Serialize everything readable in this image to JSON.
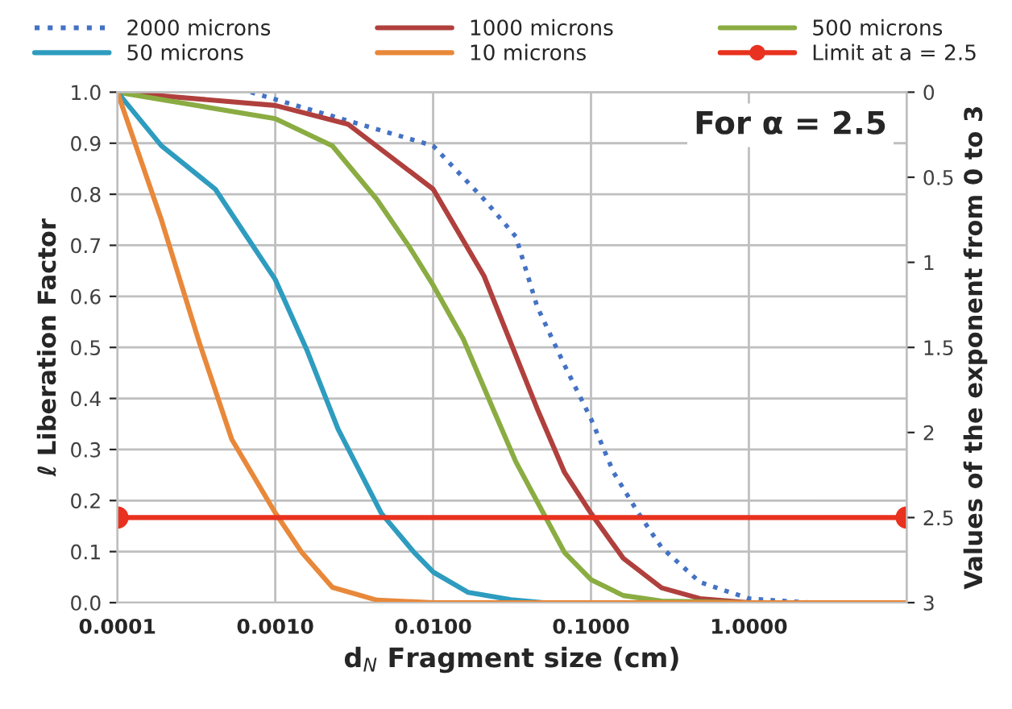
{
  "chart_data": {
    "type": "line",
    "xlabel": "d$_{N}$ Fragment size (cm)",
    "ylabel": "ℓ Liberation Factor",
    "y2label": "Values of the exponent from 0 to 3",
    "annotations": [
      "For α = 2.5"
    ],
    "log": "x",
    "grid": true,
    "legend": "top",
    "xlim": [
      0.0001,
      10
    ],
    "xticks": [
      {
        "value": 0.0001,
        "label": "0.0001"
      },
      {
        "value": 0.001,
        "label": "0.0010"
      },
      {
        "value": 0.01,
        "label": "0.0100"
      },
      {
        "value": 0.1,
        "label": "0.1000"
      },
      {
        "value": 1,
        "label": "1.0000"
      },
      {
        "value": 10,
        "label": null
      }
    ],
    "ylim": [
      0,
      1
    ],
    "yticks": [
      {
        "value": 0,
        "label": "0.0"
      },
      0.1,
      0.2,
      0.3,
      0.4,
      0.5,
      0.6,
      0.7,
      0.8,
      0.9,
      {
        "value": 1,
        "label": "1.0"
      }
    ],
    "y2lim": [
      3,
      0
    ],
    "y2ticks": [
      0,
      0.5,
      1,
      1.5,
      2,
      2.5,
      3
    ],
    "series": [
      {
        "name": "2000 microns",
        "color": "#4472c4",
        "line_style": "dotted",
        "x": [
          0.0007,
          0.01,
          0.021,
          0.0334,
          0.0456,
          0.068,
          0.1,
          0.139,
          0.2,
          0.28,
          0.49,
          1.0,
          1.7,
          2.5
        ],
        "values": [
          1.0,
          0.895,
          0.79,
          0.717,
          0.58,
          0.465,
          0.36,
          0.255,
          0.175,
          0.108,
          0.04,
          0.008,
          0.003,
          0.0
        ]
      },
      {
        "name": "1000 microns",
        "color": "#b0403d",
        "x": [
          0.0001,
          0.001,
          0.0029,
          0.01,
          0.021,
          0.0456,
          0.068,
          0.1,
          0.16,
          0.28,
          0.49,
          1.0,
          10
        ],
        "values": [
          1.0,
          0.974,
          0.937,
          0.81,
          0.64,
          0.38,
          0.255,
          0.175,
          0.087,
          0.029,
          0.008,
          0.0,
          0.0
        ]
      },
      {
        "name": "500 microns",
        "color": "#8aac42",
        "x": [
          0.0001,
          0.001,
          0.0023,
          0.0044,
          0.0071,
          0.01,
          0.0155,
          0.0247,
          0.0334,
          0.0498,
          0.068,
          0.1,
          0.16,
          0.28,
          1.0,
          10
        ],
        "values": [
          1.0,
          0.948,
          0.895,
          0.79,
          0.696,
          0.622,
          0.517,
          0.37,
          0.276,
          0.176,
          0.098,
          0.045,
          0.014,
          0.003,
          0.0,
          0.0
        ]
      },
      {
        "name": "50 microns",
        "color": "#2e9cbf",
        "x": [
          0.0001,
          0.00019,
          0.000417,
          0.00066,
          0.001,
          0.00158,
          0.0025,
          0.0047,
          0.0076,
          0.01,
          0.0167,
          0.031,
          0.05,
          10
        ],
        "values": [
          1.0,
          0.895,
          0.81,
          0.717,
          0.633,
          0.496,
          0.34,
          0.175,
          0.098,
          0.06,
          0.02,
          0.006,
          0.0,
          0.0
        ]
      },
      {
        "name": "10 microns",
        "color": "#e8883a",
        "x": [
          0.0001,
          0.00019,
          0.00033,
          0.00053,
          0.001,
          0.00146,
          0.0023,
          0.0044,
          0.01,
          10
        ],
        "values": [
          1.0,
          0.75,
          0.51,
          0.32,
          0.176,
          0.1,
          0.03,
          0.005,
          0.0,
          0.0
        ]
      },
      {
        "name": "Limit at a = 2.5",
        "color": "#e8321f",
        "axis": "y2",
        "marker": "circle",
        "x": [
          0.0001,
          10
        ],
        "values": [
          2.5,
          2.5
        ]
      }
    ]
  }
}
